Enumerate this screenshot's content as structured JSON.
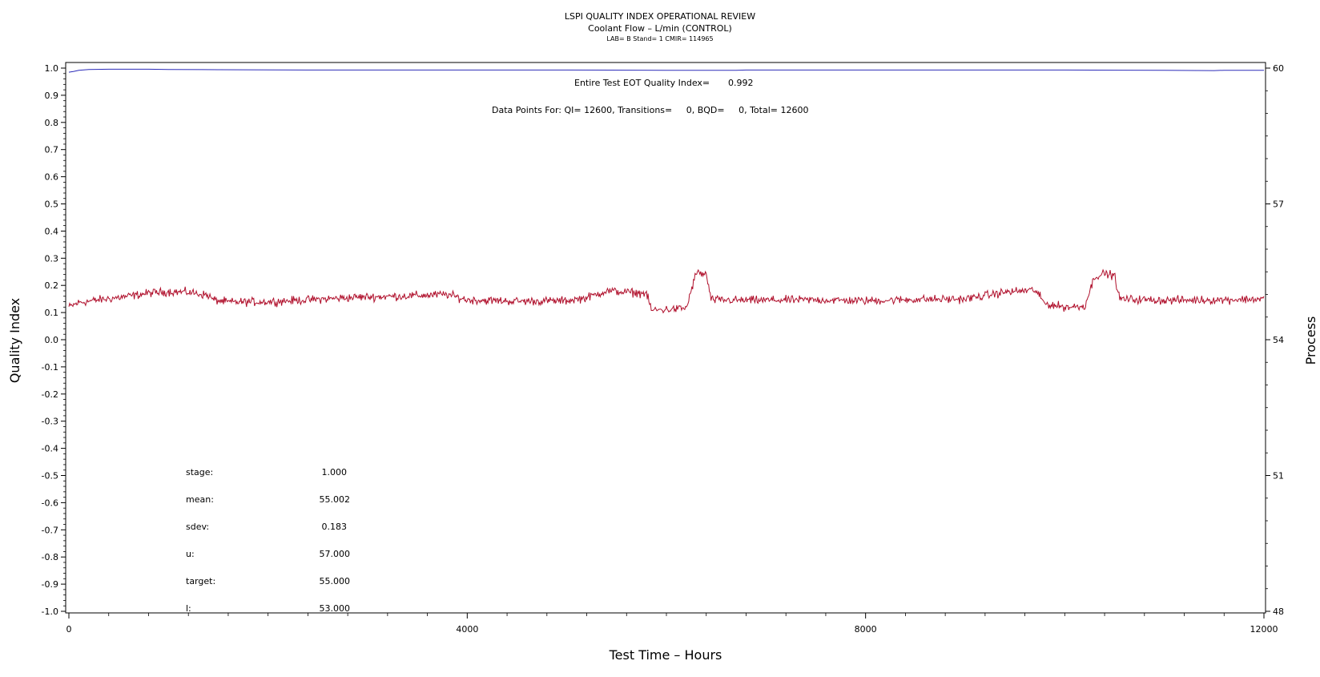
{
  "chart_data": {
    "type": "line",
    "title": "LSPI QUALITY INDEX OPERATIONAL REVIEW",
    "subtitle": "Coolant Flow – L/min (CONTROL)",
    "subtitle2": "LAB= B Stand= 1 CMIR= 114965",
    "xlabel": "Test Time – Hours",
    "ylabel": "Quality Index",
    "y2label": "Process",
    "xlim": [
      0,
      12000
    ],
    "ylim": [
      -1.0,
      1.0
    ],
    "y2lim": [
      48,
      60
    ],
    "x_ticks": [
      "0",
      "4000",
      "8000",
      "12000"
    ],
    "x_tick_values": [
      0,
      4000,
      8000,
      12000
    ],
    "y_ticks": [
      "1.0",
      "0.9",
      "0.8",
      "0.7",
      "0.6",
      "0.5",
      "0.4",
      "0.3",
      "0.2",
      "0.1",
      "0.0",
      "-0.1",
      "-0.2",
      "-0.3",
      "-0.4",
      "-0.5",
      "-0.6",
      "-0.7",
      "-0.8",
      "-0.9",
      "-1.0"
    ],
    "y2_ticks": [
      "60",
      "57",
      "54",
      "51",
      "48"
    ],
    "annotations": {
      "eot_label": "Entire Test EOT Quality Index=",
      "eot_value": "0.992",
      "points_label": "Data Points For: QI= 12600, Transitions=     0, BQD=     0, Total= 12600"
    },
    "stats": [
      {
        "label": "stage:",
        "value": "1.000"
      },
      {
        "label": "mean:",
        "value": "55.002"
      },
      {
        "label": "sdev:",
        "value": "0.183"
      },
      {
        "label": "u:",
        "value": "57.000"
      },
      {
        "label": "target:",
        "value": "55.000"
      },
      {
        "label": "l:",
        "value": "53.000"
      }
    ],
    "series": [
      {
        "axis": "left",
        "color": "#2b2bb8",
        "x": [
          0,
          50,
          100,
          200,
          400,
          800,
          1000,
          1500,
          2500,
          4000,
          5000,
          6000,
          6700,
          6800,
          7000,
          8000,
          9000,
          10000,
          11000,
          11500,
          11600,
          12000
        ],
        "values": [
          0.985,
          0.988,
          0.992,
          0.995,
          0.996,
          0.996,
          0.995,
          0.994,
          0.993,
          0.993,
          0.993,
          0.992,
          0.992,
          0.993,
          0.993,
          0.993,
          0.993,
          0.993,
          0.992,
          0.991,
          0.992,
          0.992
        ]
      },
      {
        "axis": "right",
        "color": "#b0102c",
        "noise": 0.09,
        "x": [
          0,
          100,
          300,
          600,
          800,
          1000,
          1200,
          1400,
          1450,
          1600,
          2000,
          2400,
          2900,
          3300,
          3800,
          4000,
          4500,
          5000,
          5200,
          5400,
          5800,
          5850,
          6100,
          6200,
          6300,
          6400,
          6450,
          6800,
          7500,
          8000,
          8500,
          9000,
          9400,
          9700,
          9800,
          10000,
          10200,
          10300,
          10400,
          10500,
          10550,
          11000,
          11500,
          12000
        ],
        "values": [
          54.72,
          54.82,
          54.88,
          54.96,
          55.03,
          55.06,
          55.05,
          54.98,
          54.88,
          54.83,
          54.84,
          54.88,
          54.94,
          54.96,
          55.0,
          54.88,
          54.85,
          54.86,
          54.93,
          55.08,
          55.02,
          54.65,
          54.68,
          54.7,
          55.48,
          55.44,
          54.88,
          54.87,
          54.88,
          54.86,
          54.89,
          54.9,
          55.05,
          55.1,
          54.8,
          54.72,
          54.74,
          55.4,
          55.46,
          55.42,
          54.9,
          54.87,
          54.88,
          54.9
        ]
      }
    ]
  }
}
